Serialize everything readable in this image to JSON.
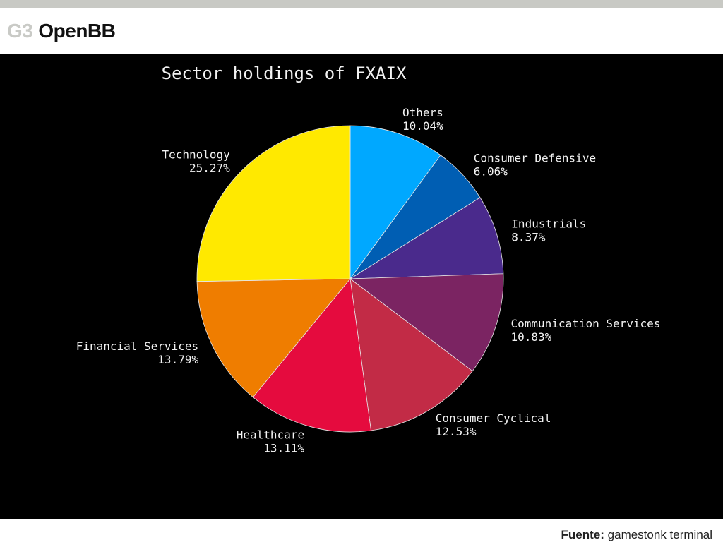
{
  "header": {
    "code": "G3",
    "name": "OpenBB"
  },
  "footer": {
    "source_label": "Fuente:",
    "source_value": "gamestonk terminal"
  },
  "chart_data": {
    "type": "pie",
    "title": "Sector holdings of FXAIX",
    "start_angle": "12 o'clock",
    "direction": "clockwise",
    "slices": [
      {
        "label": "Others",
        "pct_text": "10.04%",
        "value": 10.04,
        "color": "#00a8ff"
      },
      {
        "label": "Consumer Defensive",
        "pct_text": "6.06%",
        "value": 6.06,
        "color": "#005eb3"
      },
      {
        "label": "Industrials",
        "pct_text": "8.37%",
        "value": 8.37,
        "color": "#4a2a8c"
      },
      {
        "label": "Communication Services",
        "pct_text": "10.83%",
        "value": 10.83,
        "color": "#7b2462"
      },
      {
        "label": "Consumer Cyclical",
        "pct_text": "12.53%",
        "value": 12.53,
        "color": "#c22b46"
      },
      {
        "label": "Healthcare",
        "pct_text": "13.11%",
        "value": 13.11,
        "color": "#e50b3e"
      },
      {
        "label": "Financial Services",
        "pct_text": "13.79%",
        "value": 13.79,
        "color": "#ef7d00"
      },
      {
        "label": "Technology",
        "pct_text": "25.27%",
        "value": 25.27,
        "color": "#ffe900"
      }
    ]
  }
}
